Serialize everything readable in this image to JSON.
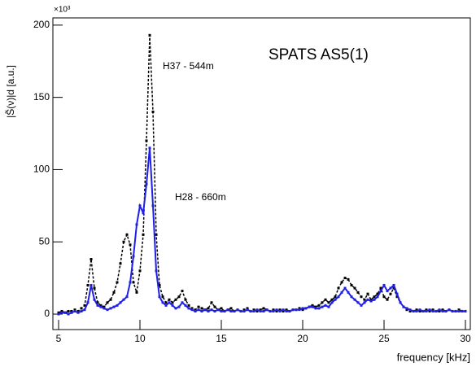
{
  "chart_data": {
    "type": "line",
    "y_label": "|S̃(ν)|d [a.u.]",
    "x_label": "frequency [kHz]",
    "y_multiplier": "×10³",
    "annotation": "SPATS AS5(1)",
    "xlim": [
      4.65,
      30.3
    ],
    "ylim": [
      -10.7,
      205
    ],
    "xticks": [
      5,
      10,
      15,
      20,
      25,
      30
    ],
    "yticks": [
      0,
      50,
      100,
      150,
      200
    ],
    "x": [
      5.0,
      5.2,
      5.4,
      5.6,
      5.8,
      6.0,
      6.2,
      6.4,
      6.6,
      6.8,
      7.0,
      7.2,
      7.4,
      7.6,
      7.8,
      8.0,
      8.2,
      8.4,
      8.6,
      8.8,
      9.0,
      9.2,
      9.4,
      9.6,
      9.8,
      10.0,
      10.2,
      10.4,
      10.6,
      10.8,
      11.0,
      11.2,
      11.4,
      11.6,
      11.8,
      12.0,
      12.2,
      12.4,
      12.6,
      12.8,
      13.0,
      13.2,
      13.4,
      13.6,
      13.8,
      14.0,
      14.2,
      14.4,
      14.6,
      14.8,
      15.0,
      15.2,
      15.4,
      15.6,
      15.8,
      16.0,
      16.2,
      16.4,
      16.6,
      16.8,
      17.0,
      17.2,
      17.4,
      17.6,
      17.8,
      18.0,
      18.2,
      18.4,
      18.6,
      18.8,
      19.0,
      19.2,
      19.4,
      19.6,
      19.8,
      20.0,
      20.2,
      20.4,
      20.6,
      20.8,
      21.0,
      21.2,
      21.4,
      21.6,
      21.8,
      22.0,
      22.2,
      22.4,
      22.6,
      22.8,
      23.0,
      23.2,
      23.4,
      23.6,
      23.8,
      24.0,
      24.2,
      24.4,
      24.6,
      24.8,
      25.0,
      25.2,
      25.4,
      25.6,
      25.8,
      26.0,
      26.2,
      26.4,
      26.6,
      26.8,
      27.0,
      27.2,
      27.4,
      27.6,
      27.8,
      28.0,
      28.2,
      28.4,
      28.6,
      28.8,
      29.0,
      29.2,
      29.4,
      29.6,
      29.8,
      30.0
    ],
    "series": [
      {
        "name": "H37 - 544m",
        "color": "#000000",
        "dashed": true,
        "values": [
          1,
          2,
          1,
          2,
          2,
          3,
          2,
          4,
          6,
          20,
          38,
          18,
          8,
          6,
          5,
          8,
          10,
          15,
          22,
          35,
          50,
          55,
          48,
          22,
          15,
          30,
          55,
          120,
          193,
          140,
          55,
          20,
          12,
          8,
          10,
          8,
          10,
          12,
          16,
          10,
          6,
          4,
          3,
          5,
          4,
          3,
          4,
          8,
          5,
          3,
          4,
          2,
          3,
          4,
          2,
          3,
          2,
          3,
          4,
          2,
          3,
          2,
          3,
          4,
          3,
          2,
          3,
          2,
          3,
          2,
          3,
          2,
          3,
          3,
          4,
          3,
          4,
          5,
          6,
          5,
          6,
          8,
          10,
          8,
          10,
          12,
          18,
          22,
          25,
          24,
          20,
          18,
          15,
          12,
          10,
          14,
          10,
          12,
          14,
          18,
          12,
          10,
          14,
          18,
          12,
          8,
          5,
          3,
          2,
          2,
          3,
          2,
          2,
          3,
          2,
          3,
          2,
          2,
          3,
          2,
          3,
          2,
          2,
          3,
          2,
          2
        ]
      },
      {
        "name": "H28 - 660m",
        "color": "#1f1fe6",
        "dashed": false,
        "values": [
          0,
          1,
          1,
          0,
          1,
          2,
          1,
          2,
          3,
          8,
          20,
          10,
          6,
          5,
          4,
          3,
          4,
          5,
          6,
          8,
          10,
          12,
          22,
          40,
          62,
          75,
          70,
          90,
          115,
          75,
          30,
          12,
          8,
          6,
          8,
          6,
          4,
          5,
          8,
          6,
          4,
          3,
          2,
          3,
          2,
          3,
          2,
          3,
          2,
          3,
          2,
          2,
          3,
          2,
          2,
          3,
          2,
          2,
          3,
          2,
          2,
          3,
          2,
          2,
          3,
          2,
          2,
          3,
          2,
          3,
          2,
          2,
          3,
          3,
          3,
          4,
          4,
          5,
          5,
          4,
          4,
          5,
          6,
          5,
          8,
          10,
          12,
          15,
          18,
          15,
          12,
          10,
          8,
          6,
          8,
          10,
          9,
          10,
          12,
          16,
          20,
          16,
          18,
          20,
          14,
          8,
          5,
          4,
          3,
          2,
          2,
          3,
          2,
          2,
          3,
          2,
          2,
          3,
          2,
          2,
          3,
          2,
          2,
          2,
          2,
          2
        ]
      }
    ]
  }
}
